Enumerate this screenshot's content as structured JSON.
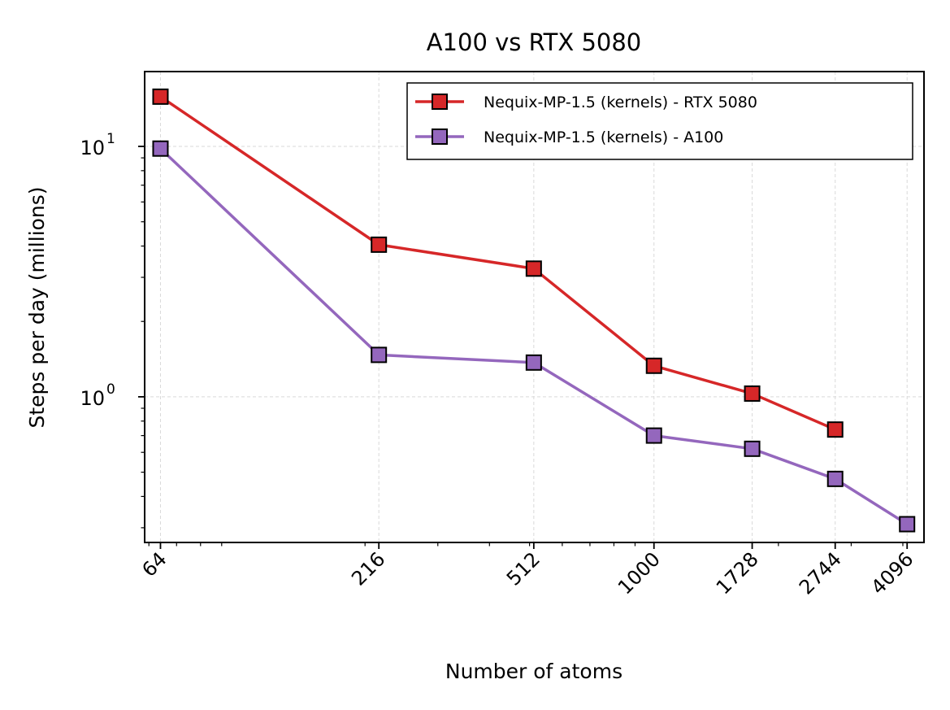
{
  "chart_data": {
    "type": "line",
    "title": "A100 vs RTX 5080",
    "xlabel": "Number of atoms",
    "ylabel": "Steps per day (millions)",
    "x_scale": "log",
    "y_scale": "log",
    "x_ticks": [
      64,
      216,
      512,
      1000,
      1728,
      2744,
      4096
    ],
    "x_tick_labels": [
      "64",
      "216",
      "512",
      "1000",
      "1728",
      "2744",
      "4096"
    ],
    "y_major_ticks": [
      {
        "value": 1,
        "base": "10",
        "exp": "0"
      },
      {
        "value": 10,
        "base": "10",
        "exp": "1"
      }
    ],
    "grid": true,
    "legend_position": "top-right",
    "series": [
      {
        "name": "Nequix-MP-1.5 (kernels) - RTX 5080",
        "color": "#d62728",
        "marker": "square",
        "x": [
          64,
          216,
          512,
          1000,
          1728,
          2744
        ],
        "y": [
          15.8,
          4.05,
          3.25,
          1.33,
          1.03,
          0.74
        ]
      },
      {
        "name": "Nequix-MP-1.5 (kernels) - A100",
        "color": "#9467bd",
        "marker": "square",
        "x": [
          64,
          216,
          512,
          1000,
          1728,
          2744,
          4096
        ],
        "y": [
          9.8,
          1.47,
          1.37,
          0.7,
          0.62,
          0.47,
          0.31
        ]
      }
    ]
  }
}
